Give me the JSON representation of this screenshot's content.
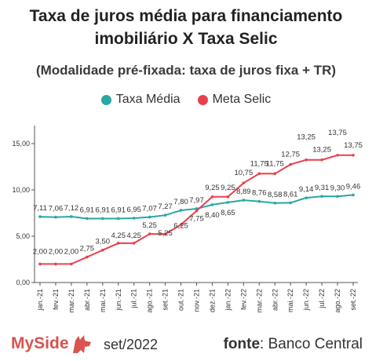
{
  "title_line1": "Taxa de juros média para financiamento",
  "title_line2": "imobiliário X Taxa Selic",
  "subtitle": "(Modalidade pré-fixada: taxa de juros fixa + TR)",
  "legend": {
    "series1": "Taxa Média",
    "series2": "Meta Selic",
    "color1": "#2aa7a2",
    "color2": "#e8414d"
  },
  "footer": {
    "brand": "MySide",
    "brand_icon": "dog-logo-icon",
    "date": "set/2022",
    "source_label": "fonte",
    "source_name": ": Banco Central"
  },
  "chart_data": {
    "type": "line",
    "categories": [
      "jan.-21",
      "fev.-21",
      "mar.-21",
      "abr.-21",
      "mai.-21",
      "jun.-21",
      "jul.-21",
      "ago.-21",
      "set.-21",
      "out.-21",
      "nov.-21",
      "dez.-21",
      "jan.-22",
      "fev.-22",
      "mar.-22",
      "abr.-22",
      "mai.-22",
      "jun.-22",
      "jul.-22",
      "ago.-22",
      "set.-22"
    ],
    "series": [
      {
        "name": "Taxa Média",
        "color": "#2aa7a2",
        "values": [
          7.11,
          7.06,
          7.12,
          6.91,
          6.91,
          6.91,
          6.95,
          7.07,
          7.27,
          7.8,
          7.97,
          8.4,
          8.65,
          8.89,
          8.76,
          8.58,
          8.61,
          9.14,
          9.31,
          9.3,
          9.46
        ],
        "labels": [
          "7,11",
          "7,06",
          "7,12",
          "6,91",
          "6,91",
          "6,91",
          "6,95",
          "7,07",
          "7,27",
          "7,80",
          "7,97",
          "8,40",
          "8,65",
          "8,89",
          "8,76",
          "8,58",
          "8,61",
          "9,14",
          "9,31",
          "9,30",
          "9,46"
        ]
      },
      {
        "name": "Meta Selic",
        "color": "#e8414d",
        "values": [
          2.0,
          2.0,
          2.0,
          2.75,
          3.5,
          4.25,
          4.25,
          5.25,
          5.25,
          6.25,
          7.75,
          9.25,
          9.25,
          10.75,
          11.75,
          11.75,
          12.75,
          13.25,
          13.25,
          13.75,
          13.75
        ],
        "labels": [
          "2,00",
          "2,00",
          "2,00",
          "2,75",
          "3,50",
          "4,25",
          "4,25",
          "5,25",
          "5,25",
          "6,25",
          "7,75",
          "9,25",
          "9,25",
          "10,75",
          "11,75",
          "11,75",
          "12,75",
          "13,25",
          "13,25",
          "13,75",
          "13,75"
        ]
      }
    ],
    "yticks": [
      0,
      5,
      10,
      15
    ],
    "ytick_labels": [
      "0,00",
      "5,00",
      "10,00",
      "15,00"
    ],
    "ylim": [
      0,
      15
    ],
    "grid": false,
    "legend_position": "top"
  }
}
